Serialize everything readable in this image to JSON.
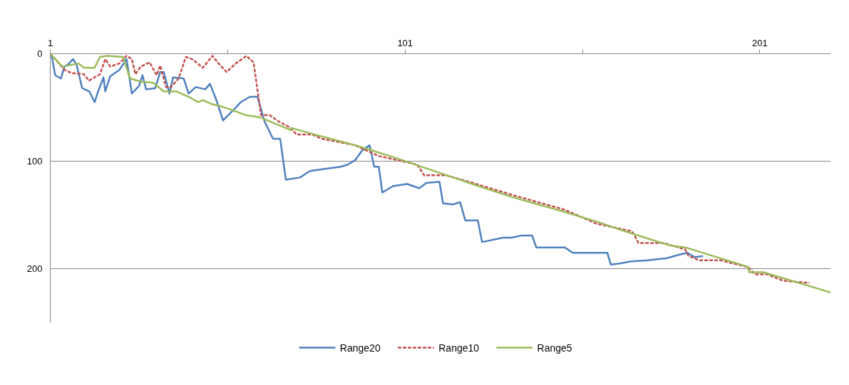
{
  "chart_data": {
    "type": "line",
    "xlim": [
      1,
      221
    ],
    "xticks": [
      1,
      {
        "value": 51,
        "label": null
      },
      101,
      {
        "value": 151,
        "label": null
      },
      201
    ],
    "ylim": [
      250,
      0
    ],
    "yticks": [
      0,
      100,
      200
    ],
    "grid": "y",
    "legend": "bottom",
    "marker": "none",
    "series": [
      {
        "name": "Range20",
        "color": "#4f81bd",
        "line_style": "solid",
        "x": [
          1,
          1.4,
          2.4,
          4,
          5,
          6,
          7.4,
          8.4,
          10,
          12,
          13.5,
          14.5,
          16,
          16.5,
          17.9,
          20.5,
          22.5,
          24,
          26,
          27,
          28,
          30.6,
          32,
          33,
          34.6,
          35.6,
          38.6,
          40,
          42,
          44.7,
          46,
          47.7,
          49.7,
          53.3,
          54.7,
          57.3,
          59.4,
          61.4,
          63.8,
          65.8,
          67.4,
          71.4,
          74.2,
          82.9,
          84.9,
          86.9,
          88.9,
          91,
          92.3,
          93.6,
          94.6,
          97.6,
          101.6,
          105,
          107,
          110.7,
          111.7,
          114.5,
          116.5,
          118,
          121.5,
          122.7,
          128.6,
          131,
          133.8,
          136.8,
          138,
          146,
          148.3,
          158,
          159,
          161.4,
          164.8,
          169.4,
          174.8,
          178,
          180.6,
          182.6,
          185
        ],
        "values": [
          0,
          2,
          20,
          23,
          12,
          10,
          5,
          10,
          32,
          35,
          45,
          35,
          22,
          35,
          21,
          15,
          5,
          37,
          30,
          20,
          33,
          32,
          17,
          17,
          37,
          22,
          23,
          37,
          31,
          33,
          28,
          42,
          62,
          50,
          45,
          40,
          40,
          63,
          79,
          79,
          117,
          115,
          109,
          105,
          103,
          99,
          90,
          85,
          105,
          105,
          129,
          123,
          121,
          125,
          120,
          119,
          139,
          140,
          138,
          155,
          155,
          175,
          171,
          171,
          169,
          169,
          180,
          180,
          185,
          185,
          196,
          195,
          193,
          192,
          190,
          187,
          185,
          189,
          188
        ]
      },
      {
        "name": "Range10",
        "color": "#c0504d",
        "line_style": "dashed",
        "x": [
          1,
          2.4,
          5,
          7,
          10.5,
          11.9,
          15,
          16.5,
          17.9,
          20.5,
          22.5,
          24,
          25,
          26.5,
          29,
          31,
          32,
          33.6,
          35,
          37.2,
          39.2,
          41,
          44,
          46.7,
          48.7,
          50.7,
          53.3,
          56.3,
          58.3,
          60.4,
          62.8,
          65.4,
          68.8,
          70.4,
          74.8,
          77.5,
          86.9,
          89.5,
          93.6,
          104.4,
          106.4,
          112.5,
          119,
          129,
          131,
          146,
          155,
          165,
          166.8,
          174,
          180,
          180.9,
          184,
          190,
          196,
          197.6,
          199.6,
          203,
          207.6,
          215
        ],
        "values": [
          0,
          5,
          15,
          18,
          19,
          25,
          19,
          5,
          12,
          9,
          2,
          5,
          19,
          12,
          8,
          20,
          11,
          31,
          31,
          23,
          3,
          5,
          13,
          2,
          10,
          17,
          9,
          2,
          8,
          57,
          57,
          63,
          69,
          75,
          75,
          79,
          85,
          89,
          95,
          103,
          113,
          113,
          119,
          129,
          131,
          145,
          158,
          165,
          176,
          176,
          182,
          188,
          192,
          192,
          197,
          198,
          205,
          205,
          211,
          213
        ]
      },
      {
        "name": "Range5",
        "color": "#9bbb59",
        "line_style": "solid",
        "x": [
          1,
          4.4,
          9,
          10.5,
          13.5,
          15,
          17,
          21.5,
          23.5,
          26.5,
          30,
          33,
          36.5,
          40,
          42.7,
          44,
          46.7,
          49.3,
          52,
          56,
          60,
          68.8,
          69,
          75.4,
          86.9,
          97.6,
          111,
          121.7,
          131,
          145.9,
          155,
          163,
          175.4,
          180,
          197.6,
          198,
          202,
          221
        ],
        "values": [
          0,
          12,
          9,
          13,
          13,
          3,
          2,
          3,
          23,
          26,
          27,
          35,
          35,
          40,
          45,
          43,
          47,
          49,
          52,
          57,
          59,
          71,
          69,
          75,
          85,
          96,
          111,
          123,
          133,
          147,
          156,
          165,
          178,
          180,
          198,
          203,
          203,
          222
        ]
      }
    ]
  }
}
